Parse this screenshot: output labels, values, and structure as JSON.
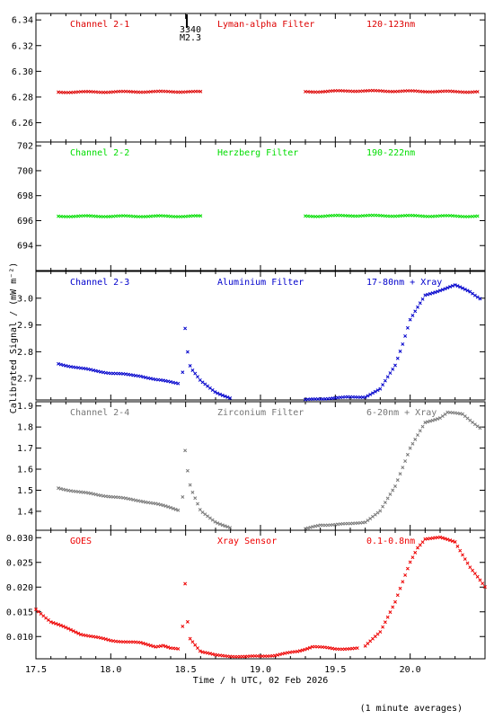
{
  "figure": {
    "ylabel": "Calibrated Signal / (mW m⁻²)",
    "xlabel": "Time / h UTC, 02 Feb 2026",
    "footnote": "(1 minute averages)"
  },
  "event_marker": {
    "x": 18.47,
    "line1": "3340",
    "line2": "M2.3"
  },
  "x_ticks": [
    {
      "v": 17.5,
      "label": "17.5"
    },
    {
      "v": 18.0,
      "label": "18.0"
    },
    {
      "v": 18.5,
      "label": "18.5"
    },
    {
      "v": 19.0,
      "label": "19.0"
    },
    {
      "v": 19.5,
      "label": "19.5"
    },
    {
      "v": 20.0,
      "label": "20.0"
    }
  ],
  "chart_data": [
    {
      "type": "scatter",
      "labels": [
        "Channel 2-1",
        "Lyman-alpha Filter",
        "120-123nm"
      ],
      "color": "#dd0000",
      "xlim": [
        17.5,
        20.5
      ],
      "ylim": [
        6.245,
        6.345
      ],
      "y_ticks": [
        {
          "v": 6.26,
          "label": "6.26"
        },
        {
          "v": 6.28,
          "label": "6.28"
        },
        {
          "v": 6.3,
          "label": "6.30"
        },
        {
          "v": 6.32,
          "label": "6.32"
        },
        {
          "v": 6.34,
          "label": "6.34"
        }
      ],
      "series_knots": [
        [
          [
            17.65,
            6.2838
          ],
          [
            18.0,
            6.284
          ],
          [
            18.4,
            6.2842
          ],
          [
            18.6,
            6.284
          ]
        ],
        [
          [
            19.3,
            6.284
          ],
          [
            19.6,
            6.2848
          ],
          [
            20.0,
            6.2845
          ],
          [
            20.45,
            6.284
          ]
        ]
      ]
    },
    {
      "type": "scatter",
      "labels": [
        "Channel 2-2",
        "Herzberg Filter",
        "190-222nm"
      ],
      "color": "#00dd00",
      "xlim": [
        17.5,
        20.5
      ],
      "ylim": [
        692,
        702.3
      ],
      "y_ticks": [
        {
          "v": 694,
          "label": "694"
        },
        {
          "v": 696,
          "label": "696"
        },
        {
          "v": 698,
          "label": "698"
        },
        {
          "v": 700,
          "label": "700"
        },
        {
          "v": 702,
          "label": "702"
        }
      ],
      "series_knots": [
        [
          [
            17.65,
            696.35
          ],
          [
            18.0,
            696.35
          ],
          [
            18.4,
            696.35
          ],
          [
            18.6,
            696.35
          ]
        ],
        [
          [
            19.3,
            696.35
          ],
          [
            19.6,
            696.4
          ],
          [
            20.0,
            696.38
          ],
          [
            20.45,
            696.35
          ]
        ]
      ]
    },
    {
      "type": "scatter",
      "labels": [
        "Channel 2-3",
        "Aluminium Filter",
        "17-80nm + Xray"
      ],
      "color": "#0000cc",
      "xlim": [
        17.5,
        20.5
      ],
      "ylim": [
        2.62,
        3.1
      ],
      "y_ticks": [
        {
          "v": 2.7,
          "label": "2.7"
        },
        {
          "v": 2.8,
          "label": "2.8"
        },
        {
          "v": 2.9,
          "label": "2.9"
        },
        {
          "v": 3.0,
          "label": "3.0"
        }
      ],
      "series_knots": [
        [
          [
            17.65,
            2.755
          ],
          [
            17.8,
            2.738
          ],
          [
            18.0,
            2.72
          ],
          [
            18.2,
            2.71
          ],
          [
            18.3,
            2.695
          ],
          [
            18.4,
            2.688
          ],
          [
            18.46,
            2.682
          ]
        ],
        [
          [
            18.48,
            2.725
          ],
          [
            18.49,
            2.905
          ],
          [
            18.5,
            2.88
          ],
          [
            18.52,
            2.76
          ],
          [
            18.54,
            2.735
          ],
          [
            18.6,
            2.69
          ],
          [
            18.7,
            2.65
          ],
          [
            18.8,
            2.625
          ]
        ],
        [
          [
            19.3,
            2.62
          ],
          [
            19.5,
            2.628
          ],
          [
            19.7,
            2.632
          ],
          [
            19.8,
            2.66
          ],
          [
            19.9,
            2.75
          ],
          [
            19.95,
            2.83
          ],
          [
            20.0,
            2.92
          ],
          [
            20.1,
            3.01
          ],
          [
            20.2,
            3.03
          ],
          [
            20.3,
            3.048
          ],
          [
            20.4,
            3.025
          ],
          [
            20.47,
            2.998
          ]
        ]
      ]
    },
    {
      "type": "scatter",
      "labels": [
        "Channel 2-4",
        "Zirconium Filter",
        "6-20nm + Xray"
      ],
      "color": "#777777",
      "xlim": [
        17.5,
        20.5
      ],
      "ylim": [
        1.31,
        1.92
      ],
      "y_ticks": [
        {
          "v": 1.4,
          "label": "1.4"
        },
        {
          "v": 1.5,
          "label": "1.5"
        },
        {
          "v": 1.6,
          "label": "1.6"
        },
        {
          "v": 1.7,
          "label": "1.7"
        },
        {
          "v": 1.8,
          "label": "1.8"
        },
        {
          "v": 1.9,
          "label": "1.9"
        }
      ],
      "series_knots": [
        [
          [
            17.65,
            1.51
          ],
          [
            17.8,
            1.49
          ],
          [
            18.0,
            1.47
          ],
          [
            18.2,
            1.45
          ],
          [
            18.3,
            1.435
          ],
          [
            18.4,
            1.418
          ],
          [
            18.46,
            1.405
          ]
        ],
        [
          [
            18.48,
            1.47
          ],
          [
            18.49,
            1.71
          ],
          [
            18.5,
            1.68
          ],
          [
            18.52,
            1.55
          ],
          [
            18.54,
            1.5
          ],
          [
            18.6,
            1.4
          ],
          [
            18.7,
            1.35
          ],
          [
            18.8,
            1.32
          ]
        ],
        [
          [
            19.3,
            1.315
          ],
          [
            19.4,
            1.335
          ],
          [
            19.6,
            1.34
          ],
          [
            19.7,
            1.35
          ],
          [
            19.8,
            1.4
          ],
          [
            19.9,
            1.52
          ],
          [
            20.0,
            1.7
          ],
          [
            20.1,
            1.82
          ],
          [
            20.2,
            1.845
          ],
          [
            20.25,
            1.87
          ],
          [
            20.35,
            1.86
          ],
          [
            20.47,
            1.795
          ]
        ]
      ]
    },
    {
      "type": "scatter",
      "labels": [
        "GOES",
        "Xray Sensor",
        "0.1-0.8nm"
      ],
      "color": "#ee0000",
      "xlim": [
        17.5,
        20.5
      ],
      "ylim": [
        0.0055,
        0.0315
      ],
      "y_ticks": [
        {
          "v": 0.01,
          "label": "0.010"
        },
        {
          "v": 0.015,
          "label": "0.015"
        },
        {
          "v": 0.02,
          "label": "0.020"
        },
        {
          "v": 0.025,
          "label": "0.025"
        },
        {
          "v": 0.03,
          "label": "0.030"
        }
      ],
      "series_knots": [
        [
          [
            17.5,
            0.0155
          ],
          [
            17.6,
            0.013
          ],
          [
            17.8,
            0.0105
          ],
          [
            18.0,
            0.0092
          ],
          [
            18.2,
            0.0087
          ],
          [
            18.3,
            0.008
          ],
          [
            18.35,
            0.0082
          ],
          [
            18.4,
            0.0076
          ],
          [
            18.46,
            0.0074
          ]
        ],
        [
          [
            18.48,
            0.012
          ],
          [
            18.49,
            0.024
          ],
          [
            18.5,
            0.019
          ],
          [
            18.52,
            0.01
          ],
          [
            18.6,
            0.007
          ],
          [
            18.7,
            0.0062
          ],
          [
            18.9,
            0.0059
          ],
          [
            19.1,
            0.0062
          ],
          [
            19.25,
            0.007
          ],
          [
            19.35,
            0.008
          ],
          [
            19.5,
            0.0075
          ],
          [
            19.65,
            0.0076
          ]
        ],
        [
          [
            19.7,
            0.008
          ],
          [
            19.8,
            0.011
          ],
          [
            19.9,
            0.017
          ],
          [
            20.0,
            0.025
          ],
          [
            20.05,
            0.028
          ],
          [
            20.1,
            0.0298
          ],
          [
            20.2,
            0.03
          ],
          [
            20.3,
            0.0292
          ],
          [
            20.4,
            0.024
          ],
          [
            20.5,
            0.02
          ]
        ]
      ]
    }
  ]
}
